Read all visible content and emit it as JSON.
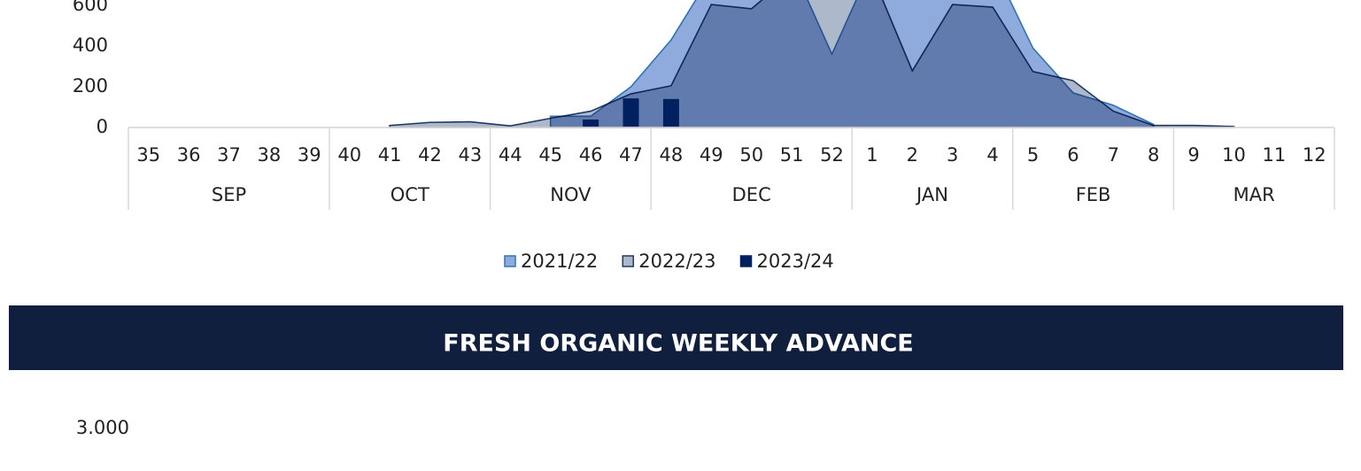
{
  "chart_data": {
    "type": "area",
    "category_groups": [
      {
        "label": "SEP",
        "categories": [
          "35",
          "36",
          "37",
          "38",
          "39"
        ]
      },
      {
        "label": "OCT",
        "categories": [
          "40",
          "41",
          "42",
          "43"
        ]
      },
      {
        "label": "NOV",
        "categories": [
          "44",
          "45",
          "46",
          "47"
        ]
      },
      {
        "label": "DEC",
        "categories": [
          "48",
          "49",
          "50",
          "51",
          "52"
        ]
      },
      {
        "label": "JAN",
        "categories": [
          "1",
          "2",
          "3",
          "4"
        ]
      },
      {
        "label": "FEB",
        "categories": [
          "5",
          "6",
          "7",
          "8"
        ]
      },
      {
        "label": "MAR",
        "categories": [
          "9",
          "10",
          "11",
          "12"
        ]
      }
    ],
    "series": [
      {
        "name": "2021/22",
        "kind": "area",
        "color": "#8faadc",
        "stroke": "#2e75b6",
        "values": [
          null,
          null,
          null,
          null,
          null,
          null,
          null,
          null,
          null,
          null,
          55,
          55,
          200,
          430,
          750,
          800,
          800,
          360,
          800,
          800,
          800,
          800,
          390,
          170,
          109,
          15,
          null,
          null,
          null,
          null
        ]
      },
      {
        "name": "2022/23",
        "kind": "area",
        "color": "#adb9ca",
        "stroke": "#1f3864",
        "values": [
          null,
          null,
          null,
          null,
          null,
          null,
          10,
          25,
          28,
          8,
          45,
          80,
          165,
          205,
          604,
          583,
          750,
          660,
          750,
          278,
          604,
          591,
          275,
          230,
          80,
          10,
          10,
          5,
          null,
          null
        ]
      },
      {
        "name": "2023/24",
        "kind": "bar",
        "color": "#002060",
        "stroke": "#002060",
        "values": [
          null,
          null,
          null,
          null,
          null,
          null,
          null,
          null,
          null,
          null,
          null,
          39,
          143,
          140,
          null,
          null,
          null,
          null,
          null,
          null,
          null,
          null,
          null,
          null,
          null,
          null,
          null,
          null,
          null,
          null
        ]
      }
    ],
    "ylim": [
      0,
      800
    ],
    "yticks": [
      0,
      200,
      400,
      600
    ]
  },
  "banner": "FRESH ORGANIC WEEKLY ADVANCE",
  "next_chart": {
    "yticks": [
      {
        "value": 3000,
        "label": "3.000"
      }
    ]
  }
}
